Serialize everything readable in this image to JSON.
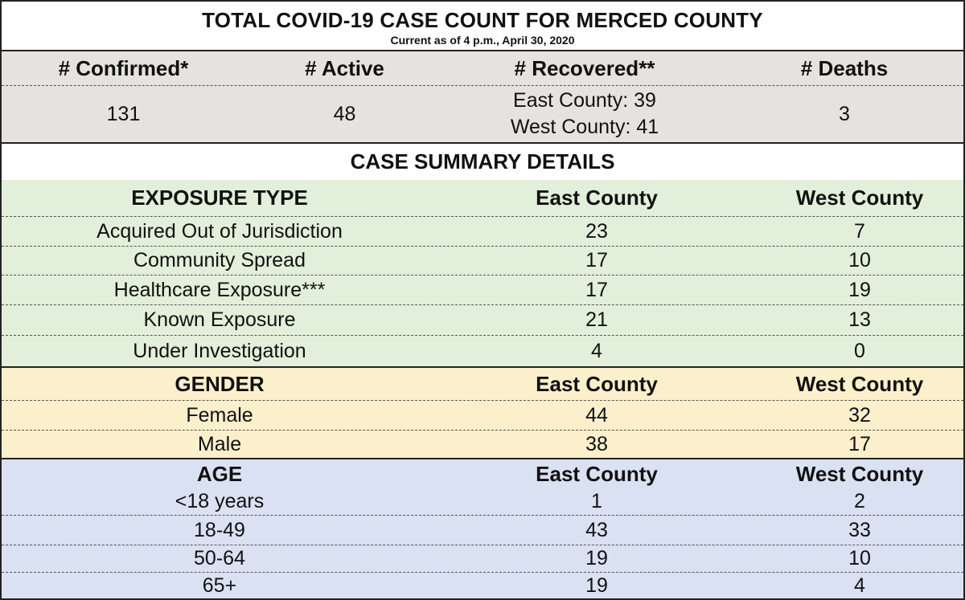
{
  "title": "TOTAL COVID-19 CASE COUNT FOR MERCED COUNTY",
  "subtitle": "Current as of 4 p.m., April 30, 2020",
  "totals": {
    "headers": [
      "# Confirmed*",
      "# Active",
      "# Recovered**",
      "# Deaths"
    ],
    "confirmed": "131",
    "active": "48",
    "recovered_east": "East County: 39",
    "recovered_west": "West County: 41",
    "deaths": "3"
  },
  "summary_title": "CASE SUMMARY DETAILS",
  "exposure": {
    "header": "EXPOSURE TYPE",
    "col_east": "East County",
    "col_west": "West County",
    "rows": [
      {
        "label": "Acquired Out of Jurisdiction",
        "east": "23",
        "west": "7"
      },
      {
        "label": "Community Spread",
        "east": "17",
        "west": "10"
      },
      {
        "label": "Healthcare Exposure***",
        "east": "17",
        "west": "19"
      },
      {
        "label": "Known Exposure",
        "east": "21",
        "west": "13"
      },
      {
        "label": "Under Investigation",
        "east": "4",
        "west": "0"
      }
    ]
  },
  "gender": {
    "header": "GENDER",
    "col_east": "East County",
    "col_west": "West County",
    "rows": [
      {
        "label": "Female",
        "east": "44",
        "west": "32"
      },
      {
        "label": "Male",
        "east": "38",
        "west": "17"
      }
    ]
  },
  "age": {
    "header": "AGE",
    "col_east": "East County",
    "col_west": "West County",
    "rows": [
      {
        "label": "<18 years",
        "east": "1",
        "west": "2"
      },
      {
        "label": "18-49",
        "east": "43",
        "west": "33"
      },
      {
        "label": "50-64",
        "east": "19",
        "west": "10"
      },
      {
        "label": "65+",
        "east": "19",
        "west": "4"
      }
    ]
  },
  "colors": {
    "gray_band": "#e6e2e0",
    "exposure_band": "#e2efda",
    "gender_band": "#fcefcb",
    "age_band": "#d9e1f2"
  }
}
